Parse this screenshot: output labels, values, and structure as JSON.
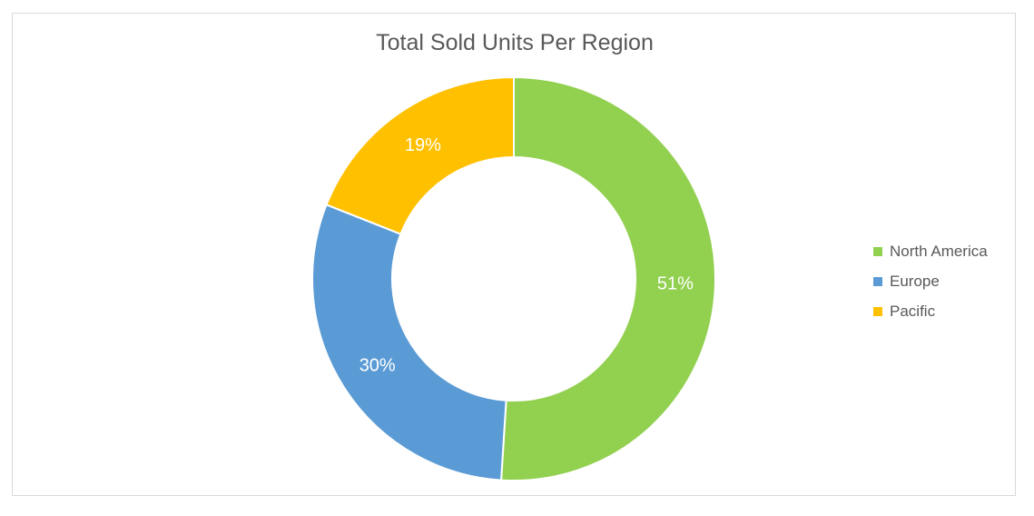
{
  "chart_data": {
    "type": "pie",
    "variant": "donut",
    "title": "Total Sold Units Per Region",
    "categories": [
      "North America",
      "Europe",
      "Pacific"
    ],
    "values": [
      51,
      30,
      19
    ],
    "data_labels": [
      "51%",
      "30%",
      "19%"
    ],
    "colors": [
      "#92d050",
      "#5b9bd5",
      "#ffc000"
    ],
    "legend_position": "right"
  }
}
